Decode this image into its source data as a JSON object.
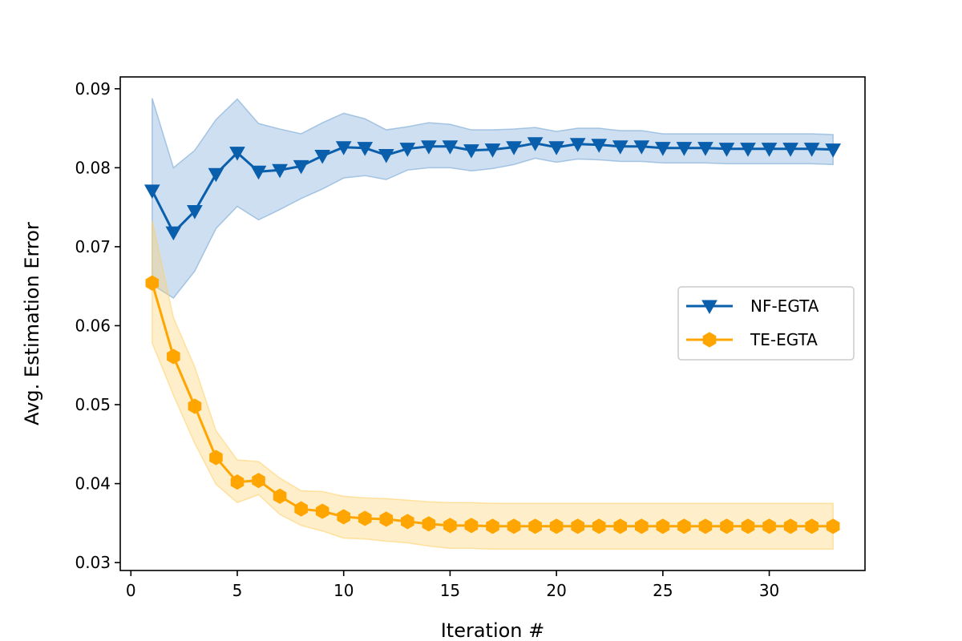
{
  "chart_data": {
    "type": "line",
    "title": "",
    "xlabel": "Iteration #",
    "ylabel": "Avg. Estimation Error",
    "xlim": [
      -0.5,
      34.5
    ],
    "ylim": [
      0.029,
      0.0915
    ],
    "xticks": [
      0,
      5,
      10,
      15,
      20,
      25,
      30
    ],
    "yticks": [
      0.03,
      0.04,
      0.05,
      0.06,
      0.07,
      0.08,
      0.09
    ],
    "ytick_labels": [
      "0.03",
      "0.04",
      "0.05",
      "0.06",
      "0.07",
      "0.08",
      "0.09"
    ],
    "legend_position": "center-right",
    "x": [
      1,
      2,
      3,
      4,
      5,
      6,
      7,
      8,
      9,
      10,
      11,
      12,
      13,
      14,
      15,
      16,
      17,
      18,
      19,
      20,
      21,
      22,
      23,
      24,
      25,
      26,
      27,
      28,
      29,
      30,
      31,
      32,
      33
    ],
    "series": [
      {
        "name": "NF-EGTA",
        "color": "#0a5fad",
        "band_color": "#6fa3d4",
        "marker": "triangle-down",
        "values": [
          0.0771,
          0.0718,
          0.0745,
          0.0792,
          0.0819,
          0.0795,
          0.0797,
          0.0802,
          0.0815,
          0.0826,
          0.0825,
          0.0816,
          0.0824,
          0.0827,
          0.0827,
          0.0822,
          0.0823,
          0.0826,
          0.0831,
          0.0826,
          0.083,
          0.0829,
          0.0827,
          0.0827,
          0.0825,
          0.0825,
          0.0825,
          0.0824,
          0.0824,
          0.0824,
          0.0824,
          0.0824,
          0.0823
        ],
        "upper": [
          0.0888,
          0.08,
          0.0822,
          0.0861,
          0.0887,
          0.0856,
          0.0849,
          0.0843,
          0.0857,
          0.0869,
          0.0862,
          0.0848,
          0.0852,
          0.0857,
          0.0855,
          0.0848,
          0.0848,
          0.0849,
          0.0851,
          0.0846,
          0.085,
          0.085,
          0.0847,
          0.0847,
          0.0843,
          0.0843,
          0.0843,
          0.0843,
          0.0843,
          0.0843,
          0.0843,
          0.0843,
          0.0842
        ],
        "lower": [
          0.0652,
          0.0635,
          0.0669,
          0.0723,
          0.0751,
          0.0734,
          0.0747,
          0.0761,
          0.0773,
          0.0787,
          0.079,
          0.0785,
          0.0797,
          0.08,
          0.08,
          0.0796,
          0.0799,
          0.0804,
          0.0812,
          0.0807,
          0.0811,
          0.081,
          0.0808,
          0.0808,
          0.0806,
          0.0806,
          0.0806,
          0.0805,
          0.0805,
          0.0805,
          0.0805,
          0.0805,
          0.0804
        ]
      },
      {
        "name": "TE-EGTA",
        "color": "#ffa500",
        "band_color": "#ffcf66",
        "marker": "hexagon",
        "values": [
          0.0654,
          0.0561,
          0.0498,
          0.0433,
          0.0402,
          0.0404,
          0.0384,
          0.0368,
          0.0365,
          0.0358,
          0.0356,
          0.0355,
          0.0352,
          0.0349,
          0.0347,
          0.0347,
          0.0346,
          0.0346,
          0.0346,
          0.0346,
          0.0346,
          0.0346,
          0.0346,
          0.0346,
          0.0346,
          0.0346,
          0.0346,
          0.0346,
          0.0346,
          0.0346,
          0.0346,
          0.0346,
          0.0346
        ],
        "upper": [
          0.0733,
          0.061,
          0.0548,
          0.0467,
          0.043,
          0.0428,
          0.0407,
          0.0391,
          0.039,
          0.0384,
          0.0382,
          0.0381,
          0.0379,
          0.0377,
          0.0376,
          0.0376,
          0.0375,
          0.0375,
          0.0375,
          0.0375,
          0.0375,
          0.0375,
          0.0375,
          0.0375,
          0.0375,
          0.0375,
          0.0375,
          0.0375,
          0.0375,
          0.0375,
          0.0375,
          0.0375,
          0.0375
        ],
        "lower": [
          0.0578,
          0.0512,
          0.0451,
          0.0399,
          0.0376,
          0.0386,
          0.0361,
          0.0347,
          0.034,
          0.0331,
          0.033,
          0.0327,
          0.0325,
          0.0321,
          0.0318,
          0.0318,
          0.0317,
          0.0317,
          0.0317,
          0.0317,
          0.0317,
          0.0317,
          0.0317,
          0.0317,
          0.0317,
          0.0317,
          0.0317,
          0.0317,
          0.0317,
          0.0317,
          0.0317,
          0.0317,
          0.0317
        ]
      }
    ]
  }
}
